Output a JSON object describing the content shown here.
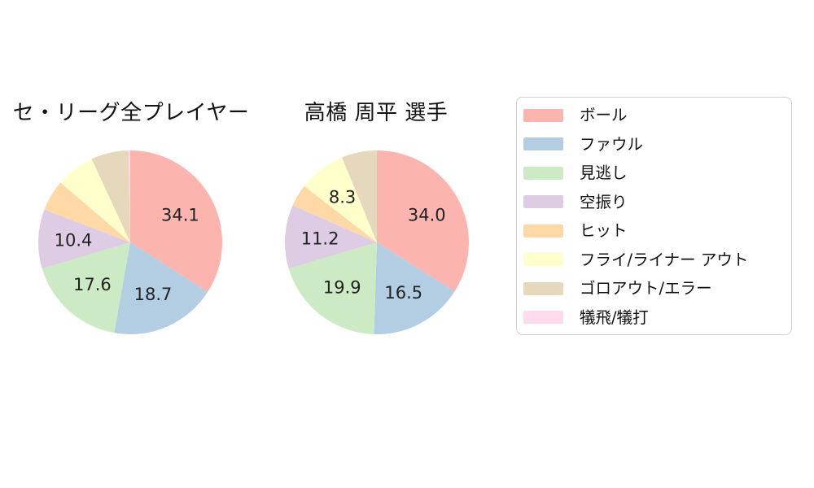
{
  "chart_data": {
    "type": "pie",
    "layout": {
      "legend_position": "right",
      "start_angle": "12 o'clock",
      "direction": "clockwise",
      "value_label_threshold_pct": 8,
      "value_label_format": "one decimal, percent of total"
    },
    "series_labels": [
      "ボール",
      "ファウル",
      "見逃し",
      "空振り",
      "ヒット",
      "フライ/ライナー アウト",
      "ゴロアウト/エラー",
      "犠飛/犠打"
    ],
    "colors": [
      "#fbb4ae",
      "#b3cde3",
      "#ccebc5",
      "#decbe4",
      "#fed9a6",
      "#ffffcc",
      "#e5d8bd",
      "#fddaec"
    ],
    "pies": [
      {
        "title": "セ・リーグ全プレイヤー",
        "values": [
          34.1,
          18.7,
          17.6,
          10.4,
          5.5,
          6.8,
          6.6,
          0.3
        ],
        "visible_value_labels": [
          "34.1",
          "18.7",
          "17.6",
          "10.4"
        ],
        "note": "values 5.5, 6.8, 6.6, 0.3 estimated from slice arc angles (unlabeled in chart)"
      },
      {
        "title": "高橋 周平 選手",
        "values": [
          34.0,
          16.5,
          19.9,
          11.2,
          3.9,
          8.3,
          6.2,
          0.0
        ],
        "visible_value_labels": [
          "34.0",
          "16.5",
          "19.9",
          "11.2",
          "8.3"
        ],
        "note": "values 3.9, 6.2, 0.0 estimated from slice arc angles (unlabeled in chart)"
      }
    ],
    "legend": {
      "items": [
        {
          "label": "ボール",
          "color": "#fbb4ae"
        },
        {
          "label": "ファウル",
          "color": "#b3cde3"
        },
        {
          "label": "見逃し",
          "color": "#ccebc5"
        },
        {
          "label": "空振り",
          "color": "#decbe4"
        },
        {
          "label": "ヒット",
          "color": "#fed9a6"
        },
        {
          "label": "フライ/ライナー アウト",
          "color": "#ffffcc"
        },
        {
          "label": "ゴロアウト/エラー",
          "color": "#e5d8bd"
        },
        {
          "label": "犠飛/犠打",
          "color": "#fddaec"
        }
      ]
    }
  }
}
